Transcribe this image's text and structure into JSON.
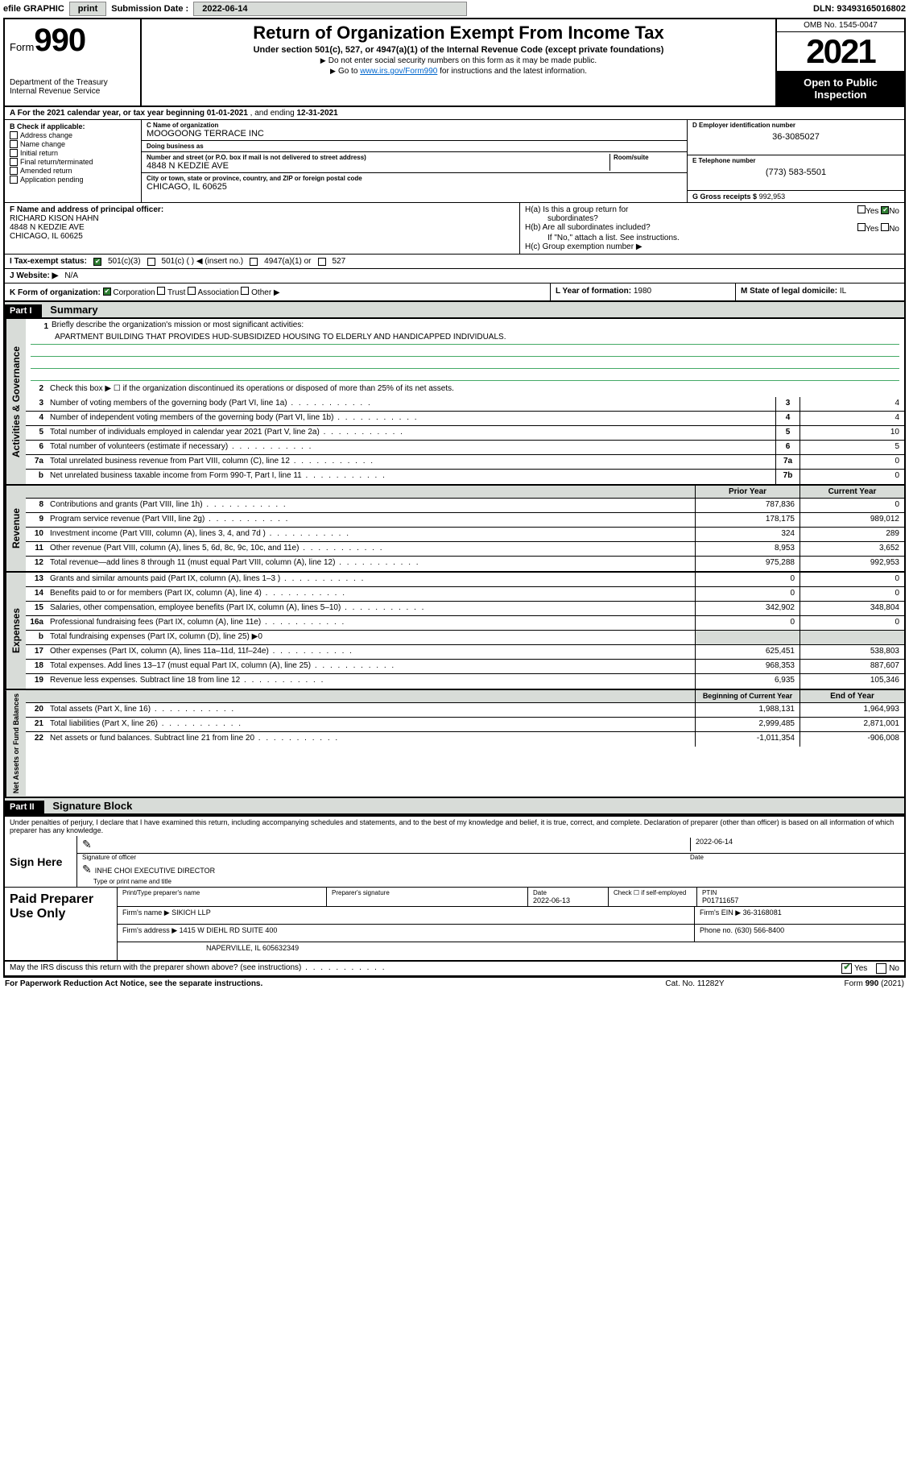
{
  "topbar": {
    "efile_label": "efile GRAPHIC",
    "print_btn": "print",
    "submission_label": "Submission Date :",
    "submission_date": "2022-06-14",
    "dln": "DLN: 93493165016802"
  },
  "header": {
    "form_prefix": "Form",
    "form_number": "990",
    "dept": "Department of the Treasury",
    "irs": "Internal Revenue Service",
    "title": "Return of Organization Exempt From Income Tax",
    "subtitle": "Under section 501(c), 527, or 4947(a)(1) of the Internal Revenue Code (except private foundations)",
    "note1": "Do not enter social security numbers on this form as it may be made public.",
    "note2_prefix": "Go to ",
    "note2_link": "www.irs.gov/Form990",
    "note2_suffix": " for instructions and the latest information.",
    "omb": "OMB No. 1545-0047",
    "year": "2021",
    "open_public": "Open to Public Inspection"
  },
  "row_a": {
    "prefix": "A For the 2021 calendar year, or tax year beginning ",
    "begin": "01-01-2021",
    "mid": " , and ending ",
    "end": "12-31-2021"
  },
  "col_b": {
    "hdr": "B Check if applicable:",
    "items": [
      "Address change",
      "Name change",
      "Initial return",
      "Final return/terminated",
      "Amended return",
      "Application pending"
    ]
  },
  "entity": {
    "c_label": "C Name of organization",
    "c_name": "MOOGOONG TERRACE INC",
    "dba_label": "Doing business as",
    "dba": "",
    "addr_label": "Number and street (or P.O. box if mail is not delivered to street address)",
    "room_label": "Room/suite",
    "addr": "4848 N KEDZIE AVE",
    "city_label": "City or town, state or province, country, and ZIP or foreign postal code",
    "city": "CHICAGO, IL  60625",
    "d_label": "D Employer identification number",
    "d_val": "36-3085027",
    "e_label": "E Telephone number",
    "e_val": "(773) 583-5501",
    "g_label": "G Gross receipts $",
    "g_val": "992,953"
  },
  "row_f": {
    "f_label": "F Name and address of principal officer:",
    "f_name": "RICHARD KISON HAHN",
    "f_addr1": "4848 N KEDZIE AVE",
    "f_addr2": "CHICAGO, IL  60625",
    "ha_label": "H(a)  Is this a group return for",
    "ha_sub": "subordinates?",
    "hb_label": "H(b)  Are all subordinates included?",
    "hb_note": "If \"No,\" attach a list. See instructions.",
    "hc_label": "H(c)  Group exemption number ▶",
    "yes": "Yes",
    "no": "No"
  },
  "row_i": {
    "label": "I  Tax-exempt status:",
    "opt1": "501(c)(3)",
    "opt2": "501(c) (   ) ◀ (insert no.)",
    "opt3": "4947(a)(1) or",
    "opt4": "527"
  },
  "row_j": {
    "label": "J  Website: ▶",
    "val": "N/A"
  },
  "row_k": {
    "label": "K Form of organization:",
    "opts": [
      "Corporation",
      "Trust",
      "Association",
      "Other ▶"
    ],
    "l_label": "L Year of formation:",
    "l_val": "1980",
    "m_label": "M State of legal domicile:",
    "m_val": "IL"
  },
  "part1": {
    "hdr": "Part I",
    "title": "Summary"
  },
  "mission": {
    "q1": "Briefly describe the organization's mission or most significant activities:",
    "text": "APARTMENT BUILDING THAT PROVIDES HUD-SUBSIDIZED HOUSING TO ELDERLY AND HANDICAPPED INDIVIDUALS."
  },
  "governance": {
    "side": "Activities & Governance",
    "lines": [
      {
        "n": "2",
        "t": "Check this box ▶ ☐  if the organization discontinued its operations or disposed of more than 25% of its net assets.",
        "box": "",
        "v": ""
      },
      {
        "n": "3",
        "t": "Number of voting members of the governing body (Part VI, line 1a)",
        "box": "3",
        "v": "4"
      },
      {
        "n": "4",
        "t": "Number of independent voting members of the governing body (Part VI, line 1b)",
        "box": "4",
        "v": "4"
      },
      {
        "n": "5",
        "t": "Total number of individuals employed in calendar year 2021 (Part V, line 2a)",
        "box": "5",
        "v": "10"
      },
      {
        "n": "6",
        "t": "Total number of volunteers (estimate if necessary)",
        "box": "6",
        "v": "5"
      },
      {
        "n": "7a",
        "t": "Total unrelated business revenue from Part VIII, column (C), line 12",
        "box": "7a",
        "v": "0"
      },
      {
        "n": "b",
        "t": "Net unrelated business taxable income from Form 990-T, Part I, line 11",
        "box": "7b",
        "v": "0"
      }
    ]
  },
  "twocol_hdr": {
    "prior": "Prior Year",
    "current": "Current Year"
  },
  "revenue": {
    "side": "Revenue",
    "lines": [
      {
        "n": "8",
        "t": "Contributions and grants (Part VIII, line 1h)",
        "p": "787,836",
        "c": "0"
      },
      {
        "n": "9",
        "t": "Program service revenue (Part VIII, line 2g)",
        "p": "178,175",
        "c": "989,012"
      },
      {
        "n": "10",
        "t": "Investment income (Part VIII, column (A), lines 3, 4, and 7d )",
        "p": "324",
        "c": "289"
      },
      {
        "n": "11",
        "t": "Other revenue (Part VIII, column (A), lines 5, 6d, 8c, 9c, 10c, and 11e)",
        "p": "8,953",
        "c": "3,652"
      },
      {
        "n": "12",
        "t": "Total revenue—add lines 8 through 11 (must equal Part VIII, column (A), line 12)",
        "p": "975,288",
        "c": "992,953"
      }
    ]
  },
  "expenses": {
    "side": "Expenses",
    "lines": [
      {
        "n": "13",
        "t": "Grants and similar amounts paid (Part IX, column (A), lines 1–3 )",
        "p": "0",
        "c": "0"
      },
      {
        "n": "14",
        "t": "Benefits paid to or for members (Part IX, column (A), line 4)",
        "p": "0",
        "c": "0"
      },
      {
        "n": "15",
        "t": "Salaries, other compensation, employee benefits (Part IX, column (A), lines 5–10)",
        "p": "342,902",
        "c": "348,804"
      },
      {
        "n": "16a",
        "t": "Professional fundraising fees (Part IX, column (A), line 11e)",
        "p": "0",
        "c": "0"
      },
      {
        "n": "b",
        "t": "Total fundraising expenses (Part IX, column (D), line 25) ▶0",
        "p": "",
        "c": "",
        "shade": true
      },
      {
        "n": "17",
        "t": "Other expenses (Part IX, column (A), lines 11a–11d, 11f–24e)",
        "p": "625,451",
        "c": "538,803"
      },
      {
        "n": "18",
        "t": "Total expenses. Add lines 13–17 (must equal Part IX, column (A), line 25)",
        "p": "968,353",
        "c": "887,607"
      },
      {
        "n": "19",
        "t": "Revenue less expenses. Subtract line 18 from line 12",
        "p": "6,935",
        "c": "105,346"
      }
    ]
  },
  "netassets_hdr": {
    "begin": "Beginning of Current Year",
    "end": "End of Year"
  },
  "netassets": {
    "side": "Net Assets or Fund Balances",
    "lines": [
      {
        "n": "20",
        "t": "Total assets (Part X, line 16)",
        "p": "1,988,131",
        "c": "1,964,993"
      },
      {
        "n": "21",
        "t": "Total liabilities (Part X, line 26)",
        "p": "2,999,485",
        "c": "2,871,001"
      },
      {
        "n": "22",
        "t": "Net assets or fund balances. Subtract line 21 from line 20",
        "p": "-1,011,354",
        "c": "-906,008"
      }
    ]
  },
  "part2": {
    "hdr": "Part II",
    "title": "Signature Block"
  },
  "penalties": "Under penalties of perjury, I declare that I have examined this return, including accompanying schedules and statements, and to the best of my knowledge and belief, it is true, correct, and complete. Declaration of preparer (other than officer) is based on all information of which preparer has any knowledge.",
  "sign": {
    "here": "Sign Here",
    "sig_label": "Signature of officer",
    "date_label": "Date",
    "date": "2022-06-14",
    "name": "INHE CHOI EXECUTIVE DIRECTOR",
    "name_label": "Type or print name and title"
  },
  "prep": {
    "label": "Paid Preparer Use Only",
    "print_label": "Print/Type preparer's name",
    "print_val": "",
    "sig_label": "Preparer's signature",
    "date_label": "Date",
    "date": "2022-06-13",
    "check_label": "Check ☐ if self-employed",
    "ptin_label": "PTIN",
    "ptin": "P01711657",
    "firm_name_label": "Firm's name    ▶",
    "firm_name": "SIKICH LLP",
    "firm_ein_label": "Firm's EIN ▶",
    "firm_ein": "36-3168081",
    "firm_addr_label": "Firm's address ▶",
    "firm_addr1": "1415 W DIEHL RD SUITE 400",
    "firm_addr2": "NAPERVILLE, IL  605632349",
    "phone_label": "Phone no.",
    "phone": "(630) 566-8400"
  },
  "footer": {
    "discuss": "May the IRS discuss this return with the preparer shown above? (see instructions)",
    "yes": "Yes",
    "no": "No",
    "pra": "For Paperwork Reduction Act Notice, see the separate instructions.",
    "cat": "Cat. No. 11282Y",
    "form": "Form 990 (2021)"
  }
}
